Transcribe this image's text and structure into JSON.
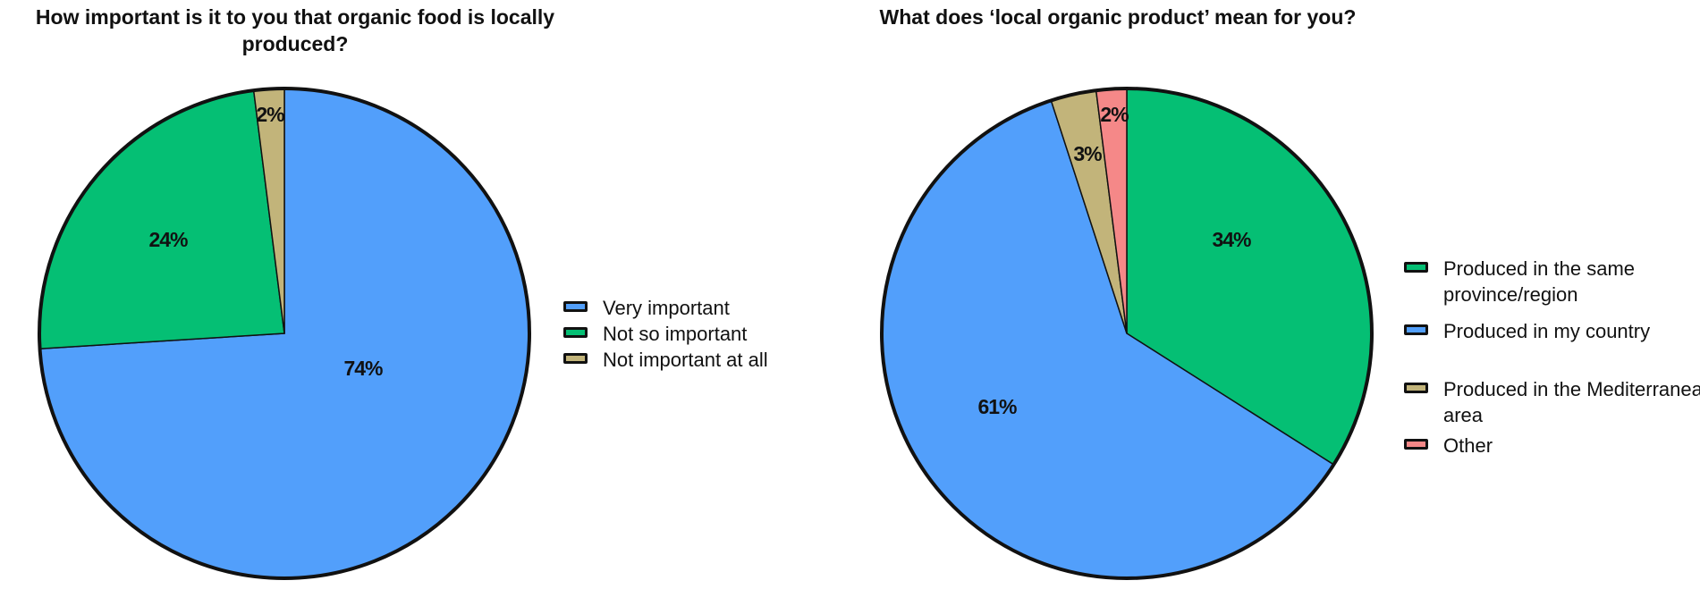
{
  "chart_data": [
    {
      "type": "pie",
      "title": "How important is it to you that organic food is locally produced?",
      "categories": [
        "Very important",
        "Not so important",
        "Not important at all"
      ],
      "values": [
        74,
        24,
        2
      ],
      "data_labels": [
        "74%",
        "24%",
        "2%"
      ],
      "colors": [
        "#529ffb",
        "#05bf74",
        "#c2b47a"
      ],
      "start_angle_deg": 0,
      "direction": "clockwise",
      "legend": "right"
    },
    {
      "type": "pie",
      "title": "What does ‘local organic product’ mean for you?",
      "categories": [
        "Produced in the same province/region",
        "Produced in my country",
        "Produced in the Mediterranean area",
        "Other"
      ],
      "values": [
        34,
        61,
        3,
        2
      ],
      "data_labels": [
        "34%",
        "61%",
        "3%",
        "2%"
      ],
      "colors": [
        "#05bf74",
        "#529ffb",
        "#c2b47a",
        "#f58888"
      ],
      "start_angle_deg": 0,
      "direction": "clockwise",
      "legend": "right"
    }
  ]
}
